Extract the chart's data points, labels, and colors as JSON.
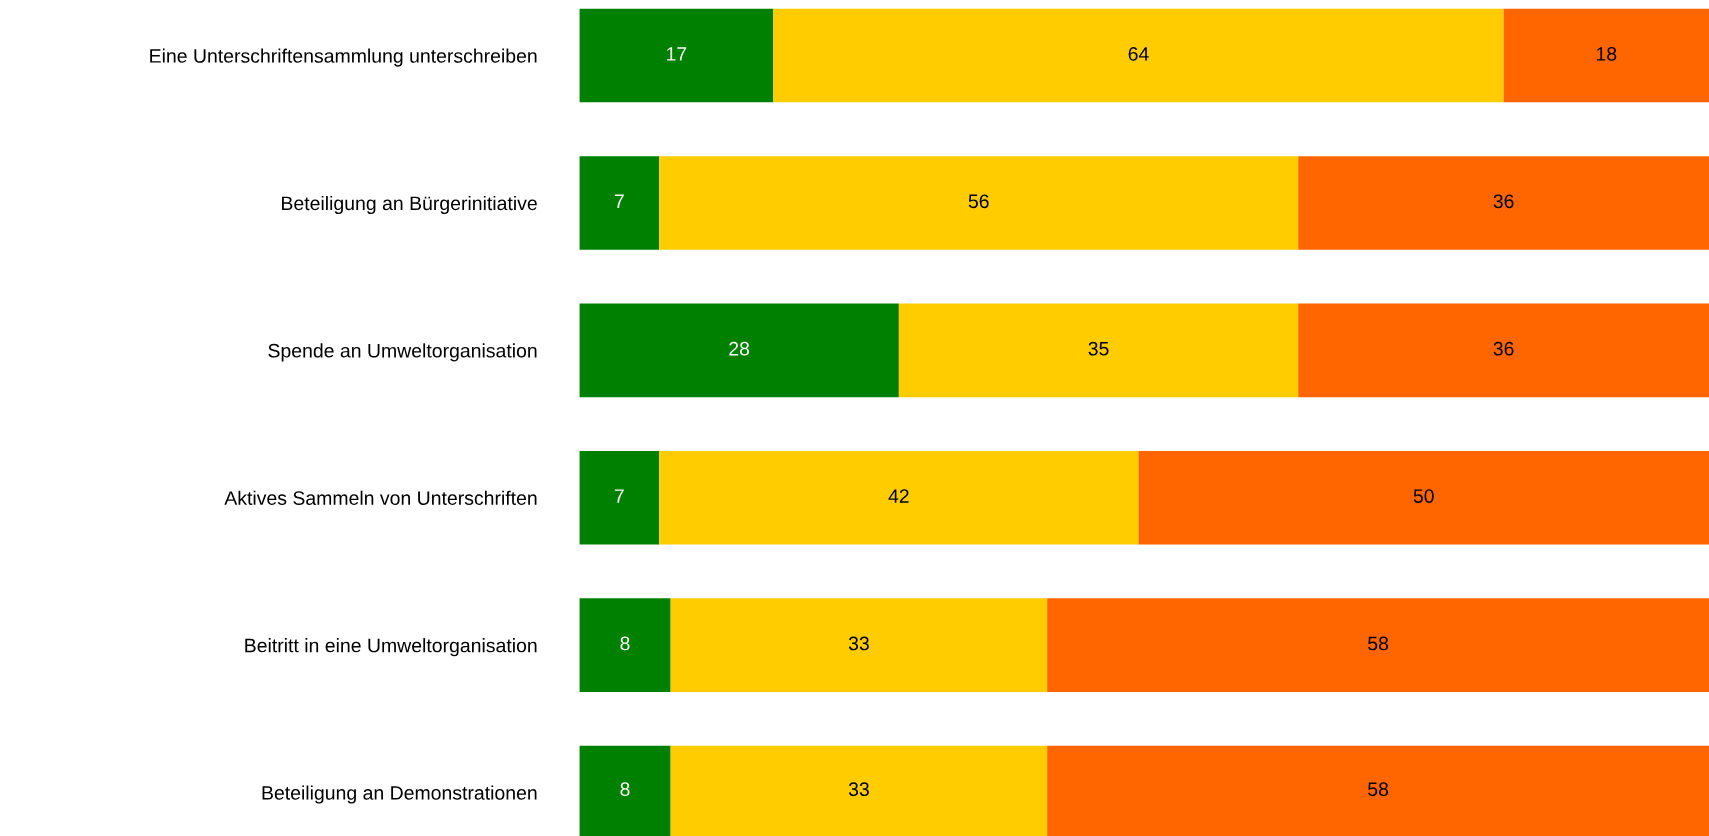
{
  "chart_data": {
    "type": "bar",
    "orientation": "horizontal",
    "stacked": true,
    "data_labels": true,
    "grid": false,
    "legend": false,
    "tick_labels": "y",
    "categories": [
      "Eine Unterschriftensammlung unterschreiben",
      "Beteiligung an Bürgerinitiative",
      "Spende an Umweltorganisation",
      "Aktives Sammeln von Unterschriften",
      "Beitritt in eine Umweltorganisation",
      "Beteiligung an Demonstrationen"
    ],
    "series": [
      {
        "color": "#008000",
        "values": [
          17,
          7,
          28,
          7,
          8,
          8
        ]
      },
      {
        "color": "#ffcc00",
        "values": [
          64,
          56,
          35,
          42,
          33,
          33
        ]
      },
      {
        "color": "#ff6600",
        "values": [
          18,
          36,
          36,
          50,
          58,
          58
        ]
      }
    ]
  }
}
